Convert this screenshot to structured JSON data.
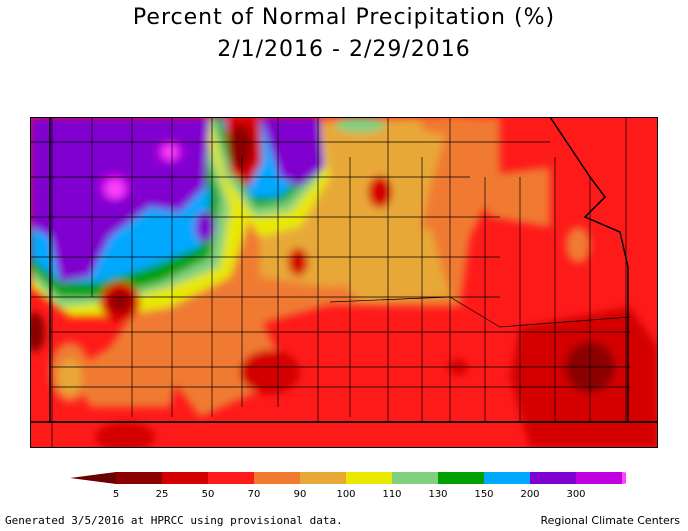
{
  "title_line1": "Percent of Normal Precipitation (%)",
  "title_line2": "2/1/2016 - 2/29/2016",
  "legend": {
    "ticks": [
      "5",
      "25",
      "50",
      "70",
      "90",
      "100",
      "110",
      "130",
      "150",
      "200",
      "300"
    ],
    "colors": [
      "#8b0000",
      "#d40000",
      "#ff1a1a",
      "#f07a30",
      "#e8a838",
      "#e8e800",
      "#80d080",
      "#00a000",
      "#00a8ff",
      "#8000d0",
      "#c000e0"
    ],
    "low_cap_color": "#6b0000",
    "high_cap_color": "#ff40ff"
  },
  "footer": {
    "left": "Generated 3/5/2016 at HPRCC using provisional data.",
    "right": "Regional Climate Centers"
  },
  "map": {
    "base_color": "#ff1a1a",
    "border_color": "#000000"
  }
}
